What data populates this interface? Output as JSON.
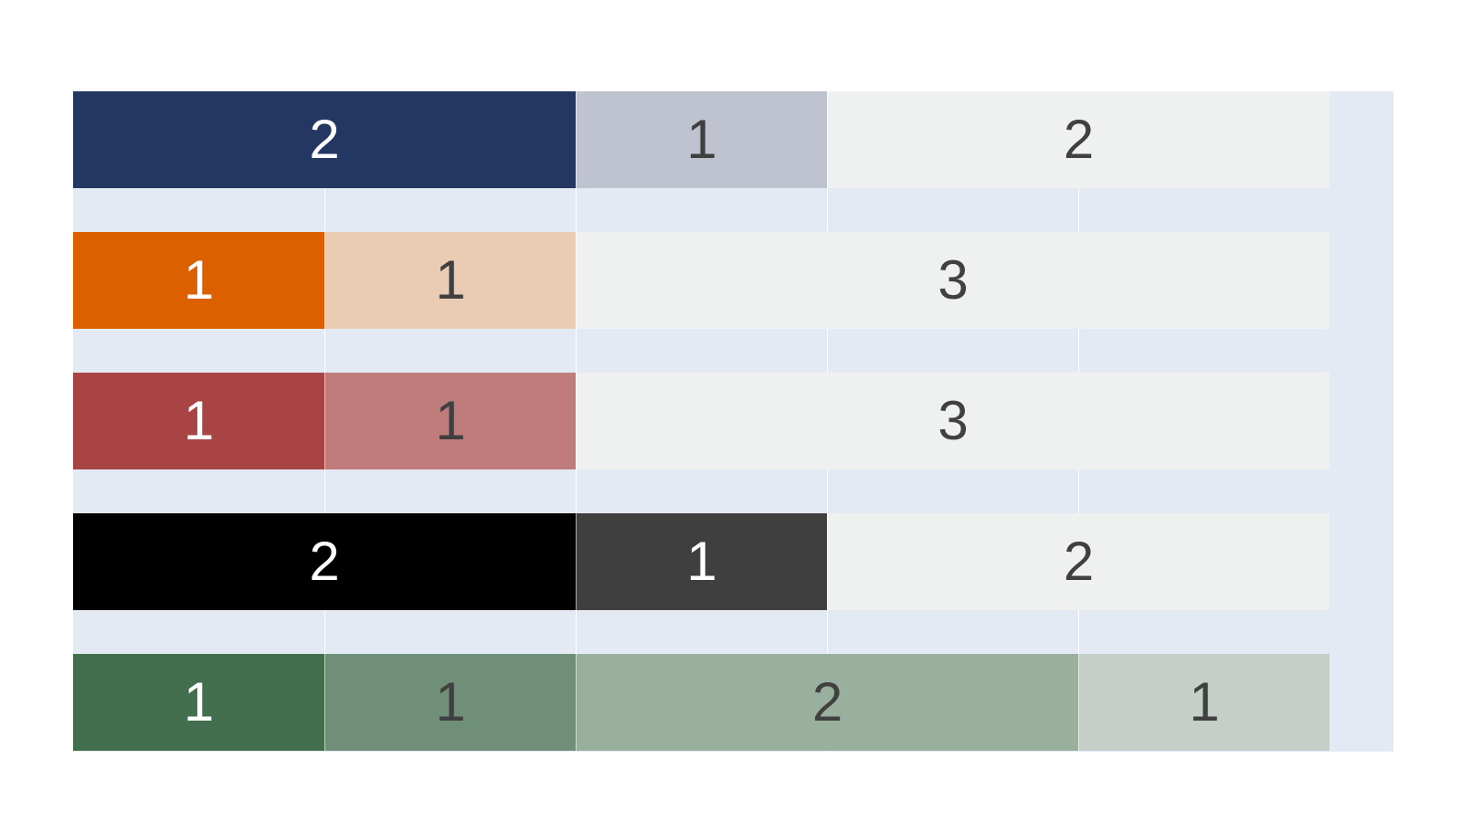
{
  "palette": {
    "panel_bg": "#e4eaf4",
    "placeholder_bg": "#eff1f0",
    "text_light": "#ffffff",
    "text_dark": "#404040"
  },
  "rows": [
    {
      "cells": [
        {
          "label": "2",
          "span": 2,
          "color": "#243763",
          "text_color": "#ffffff"
        },
        {
          "label": "1",
          "span": 1,
          "color": "#bec3cf",
          "text_color": "#404040"
        },
        {
          "label": "2",
          "span": 2,
          "color": "#eff1f0",
          "text_color": "#404040"
        }
      ]
    },
    {
      "cells": [
        {
          "label": "1",
          "span": 1,
          "color": "#dd6000",
          "text_color": "#ffffff"
        },
        {
          "label": "1",
          "span": 1,
          "color": "#eaccb4",
          "text_color": "#404040"
        },
        {
          "label": "3",
          "span": 3,
          "color": "#eff1f0",
          "text_color": "#404040"
        }
      ]
    },
    {
      "cells": [
        {
          "label": "1",
          "span": 1,
          "color": "#a84444",
          "text_color": "#ffffff"
        },
        {
          "label": "1",
          "span": 1,
          "color": "#c07b7b",
          "text_color": "#404040"
        },
        {
          "label": "3",
          "span": 3,
          "color": "#eff1f0",
          "text_color": "#404040"
        }
      ]
    },
    {
      "cells": [
        {
          "label": "2",
          "span": 2,
          "color": "#000000",
          "text_color": "#ffffff"
        },
        {
          "label": "1",
          "span": 1,
          "color": "#3f3f3f",
          "text_color": "#ffffff"
        },
        {
          "label": "2",
          "span": 2,
          "color": "#eff1f0",
          "text_color": "#404040"
        }
      ]
    },
    {
      "cells": [
        {
          "label": "1",
          "span": 1,
          "color": "#426e4e",
          "text_color": "#ffffff"
        },
        {
          "label": "1",
          "span": 1,
          "color": "#6f8f78",
          "text_color": "#404040"
        },
        {
          "label": "2",
          "span": 2,
          "color": "#99b09f",
          "text_color": "#404040"
        },
        {
          "label": "1",
          "span": 1,
          "color": "#c5cfc8",
          "text_color": "#404040"
        }
      ]
    }
  ]
}
